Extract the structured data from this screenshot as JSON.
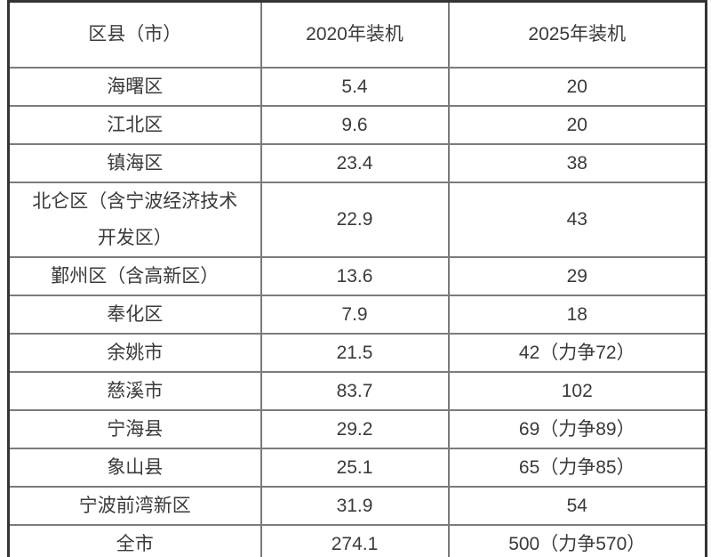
{
  "table": {
    "columns": [
      {
        "label": "区县（市）"
      },
      {
        "label": "2020年装机"
      },
      {
        "label": "2025年装机"
      }
    ],
    "rows": [
      {
        "district": "海曙区",
        "y2020": "5.4",
        "y2025": "20"
      },
      {
        "district": "江北区",
        "y2020": "9.6",
        "y2025": "20"
      },
      {
        "district": "镇海区",
        "y2020": "23.4",
        "y2025": "38"
      },
      {
        "district": "北仑区（含宁波经济技术开发区）",
        "y2020": "22.9",
        "y2025": "43"
      },
      {
        "district": "鄞州区（含高新区）",
        "y2020": "13.6",
        "y2025": "29"
      },
      {
        "district": "奉化区",
        "y2020": "7.9",
        "y2025": "18"
      },
      {
        "district": "余姚市",
        "y2020": "21.5",
        "y2025": "42（力争72）"
      },
      {
        "district": "慈溪市",
        "y2020": "83.7",
        "y2025": "102"
      },
      {
        "district": "宁海县",
        "y2020": "29.2",
        "y2025": "69（力争89）"
      },
      {
        "district": "象山县",
        "y2020": "25.1",
        "y2025": "65（力争85）"
      },
      {
        "district": "宁波前湾新区",
        "y2020": "31.9",
        "y2025": "54"
      },
      {
        "district": "全市",
        "y2020": "274.1",
        "y2025": "500（力争570）"
      }
    ]
  },
  "colors": {
    "text": "#3a3a3a",
    "inner_border": "#7b7b7b",
    "outer_border": "#333333",
    "table_background": "#ffffff"
  }
}
